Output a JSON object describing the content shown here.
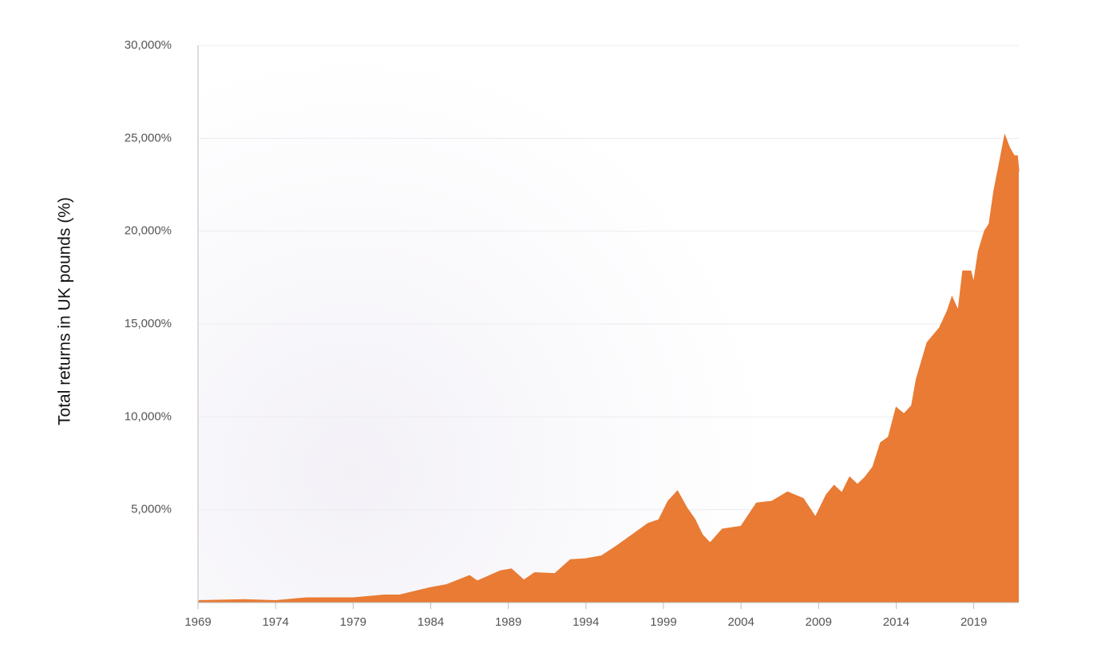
{
  "chart_data": {
    "type": "area",
    "y_label": "Total returns in UK pounds (%)",
    "color": "#e97b34",
    "x": [
      1969,
      1972,
      1974,
      1976,
      1979,
      1981,
      1982,
      1983,
      1984,
      1985,
      1986.5,
      1987,
      1988.5,
      1989.2,
      1990,
      1990.7,
      1992,
      1993,
      1994,
      1995,
      1996,
      1997,
      1998,
      1998.7,
      1999.3,
      1999.9,
      2000.5,
      2001,
      2001.5,
      2002,
      2002.8,
      2004,
      2005,
      2006,
      2007,
      2008,
      2008.8,
      2009.5,
      2010,
      2010.5,
      2011,
      2011.5,
      2012,
      2012.5,
      2013,
      2013.5,
      2014,
      2014.5,
      2015,
      2015.3,
      2016,
      2016.8,
      2017.3,
      2017.6,
      2018,
      2018.3,
      2018.8,
      2019,
      2019.3,
      2019.7,
      2020,
      2020.3,
      2020.7,
      2021,
      2021.3,
      2021.6,
      2021.8,
      2021.9
    ],
    "values": [
      100,
      150,
      100,
      250,
      250,
      400,
      400,
      600,
      800,
      950,
      1450,
      1150,
      1700,
      1800,
      1200,
      1600,
      1550,
      2300,
      2350,
      2500,
      3050,
      3650,
      4250,
      4450,
      5450,
      6000,
      5100,
      4500,
      3650,
      3200,
      3950,
      4100,
      5350,
      5450,
      5950,
      5600,
      4600,
      5800,
      6300,
      5900,
      6750,
      6350,
      6750,
      7300,
      8600,
      8900,
      10500,
      10150,
      10600,
      12000,
      14000,
      14800,
      15700,
      16450,
      15700,
      17850,
      17850,
      17200,
      18900,
      20000,
      20400,
      22150,
      23850,
      25150,
      24500,
      24050,
      24050,
      23200
    ],
    "xlim": [
      1969,
      2021.9
    ],
    "xticks": [
      1969,
      1974,
      1979,
      1984,
      1989,
      1994,
      1999,
      2004,
      2009,
      2014,
      2019
    ],
    "ylim": [
      0,
      30000
    ],
    "yticks": [
      {
        "value": 5000,
        "label": "5,000%"
      },
      {
        "value": 10000,
        "label": "10,000%"
      },
      {
        "value": 15000,
        "label": "15,000%"
      },
      {
        "value": 20000,
        "label": "20,000%"
      },
      {
        "value": 25000,
        "label": "25,000%"
      },
      {
        "value": 30000,
        "label": "30,000%"
      }
    ],
    "grid": true
  }
}
